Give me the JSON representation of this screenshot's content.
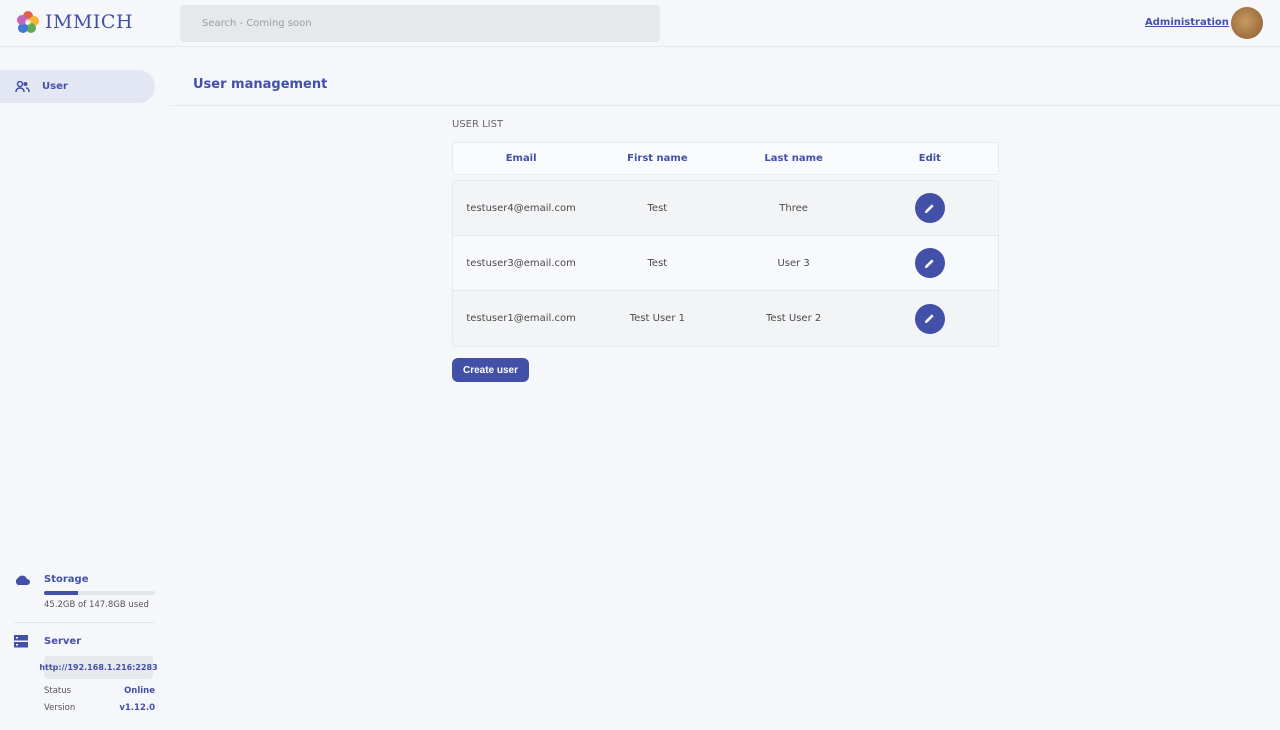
{
  "header": {
    "app_name": "IMMICH",
    "search_placeholder": "Search - Coming soon",
    "admin_link": "Administration"
  },
  "sidebar": {
    "items": [
      {
        "label": "User",
        "icon": "users-icon"
      }
    ],
    "storage": {
      "label": "Storage",
      "usage_text": "45.2GB of 147.8GB used",
      "used_fraction": 0.306
    },
    "server": {
      "label": "Server",
      "url": "http://192.168.1.216:2283",
      "status_label": "Status",
      "status_value": "Online",
      "version_label": "Version",
      "version_value": "v1.12.0"
    }
  },
  "main": {
    "title": "User management",
    "section_title": "USER LIST",
    "columns": [
      "Email",
      "First name",
      "Last name",
      "Edit"
    ],
    "rows": [
      {
        "email": "testuser4@email.com",
        "first": "Test",
        "last": "Three"
      },
      {
        "email": "testuser3@email.com",
        "first": "Test",
        "last": "User 3"
      },
      {
        "email": "testuser1@email.com",
        "first": "Test User 1",
        "last": "Test User 2"
      }
    ],
    "create_label": "Create user"
  },
  "colors": {
    "accent": "#4250a8"
  }
}
